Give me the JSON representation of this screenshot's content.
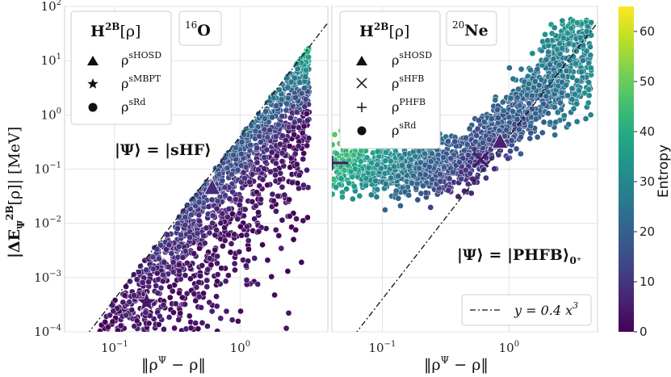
{
  "chart_data": [
    {
      "type": "scatter",
      "panel": "left",
      "nucleus": "16O",
      "nucleus_mass": "16",
      "nucleus_symbol": "O",
      "legend_title": "H^{2B}[ρ]",
      "legend_entries": [
        {
          "marker": "triangle",
          "label": "ρ^sHOSD"
        },
        {
          "marker": "star",
          "label": "ρ^sMBPT"
        },
        {
          "marker": "circle",
          "label": "ρ^sRd"
        }
      ],
      "annotation": "|Ψ⟩ = |sHF⟩",
      "xscale": "log",
      "yscale": "log",
      "xlim": [
        0.04,
        5.0
      ],
      "ylim": [
        0.0001,
        100
      ],
      "ylabel": "|ΔE_Ψ^{2B}[ρ]| [MeV]",
      "xlabel": "‖ρ^Ψ − ρ‖",
      "highlights": [
        {
          "marker": "triangle",
          "x": 0.6,
          "y": 0.045,
          "entropy": 8
        },
        {
          "marker": "star",
          "x": 0.18,
          "y": 0.00035,
          "entropy": 4
        }
      ],
      "bound_line": {
        "type": "dash-dot",
        "a": 0.4,
        "b": 3
      }
    },
    {
      "type": "scatter",
      "panel": "right",
      "nucleus": "20Ne",
      "nucleus_mass": "20",
      "nucleus_symbol": "Ne",
      "legend_title": "H^{2B}[ρ]",
      "legend_entries": [
        {
          "marker": "triangle",
          "label": "ρ^sHOSD"
        },
        {
          "marker": "x",
          "label": "ρ^sHFB"
        },
        {
          "marker": "plus",
          "label": "ρ^PHFB"
        },
        {
          "marker": "circle",
          "label": "ρ^sRd"
        }
      ],
      "annotation": "|Ψ⟩ = |PHFB⟩_{0+}",
      "xscale": "log",
      "yscale": "log",
      "xlim": [
        0.04,
        5.0
      ],
      "ylim": [
        0.0001,
        100
      ],
      "xlabel": "‖ρ^Ψ − ρ‖",
      "highlights": [
        {
          "marker": "triangle",
          "x": 0.85,
          "y": 0.32,
          "entropy": 6
        },
        {
          "marker": "x",
          "x": 0.6,
          "y": 0.15,
          "entropy": 4
        },
        {
          "marker": "plus",
          "x": 0.04,
          "y": 0.13,
          "entropy": 4
        }
      ],
      "reference_line": {
        "label": "y = 0.4 x^3",
        "a": 0.4,
        "b": 3,
        "style": "dash-dot",
        "legend_position": "lower-right"
      }
    }
  ],
  "axes": {
    "y_ticks": [
      {
        "value": 100,
        "base": "10",
        "exp": "2"
      },
      {
        "value": 10,
        "base": "10",
        "exp": "1"
      },
      {
        "value": 1,
        "base": "10",
        "exp": "0"
      },
      {
        "value": 0.1,
        "base": "10",
        "exp": "−1"
      },
      {
        "value": 0.01,
        "base": "10",
        "exp": "−2"
      },
      {
        "value": 0.001,
        "base": "10",
        "exp": "−3"
      },
      {
        "value": 0.0001,
        "base": "10",
        "exp": "−4"
      }
    ],
    "x_ticks": [
      {
        "value": 0.1,
        "base": "10",
        "exp": "−1"
      },
      {
        "value": 1,
        "base": "10",
        "exp": "0"
      }
    ]
  },
  "colorbar": {
    "label": "Entropy",
    "min": 0,
    "max": 65,
    "ticks": [
      0,
      10,
      20,
      30,
      40,
      50,
      60
    ],
    "colormap": "viridis"
  },
  "labels": {
    "legend_title_base": "H",
    "legend_title_sup": "2B",
    "legend_title_arg": "[ρ]",
    "ref_line_text": "y = 0.4 x",
    "ref_line_exp": "3",
    "annot_left": "|Ψ⟩ = |sHF⟩",
    "annot_right_main": "|Ψ⟩ = |PHFB⟩",
    "annot_right_sub": "0⁺",
    "ylabel": "|ΔE",
    "ylabel_sub": "Ψ",
    "ylabel_sup": "2B",
    "ylabel_rest": "[ρ]|  [MeV]",
    "xlabel": "‖ρ",
    "xlabel_sup": "Ψ",
    "xlabel_rest": " − ρ‖",
    "rho": "ρ",
    "sup_shosd": "sHOSD",
    "sup_smbpt": "sMBPT",
    "sup_srd": "sRd",
    "sup_shfb": "sHFB",
    "sup_phfb": "PHFB"
  }
}
